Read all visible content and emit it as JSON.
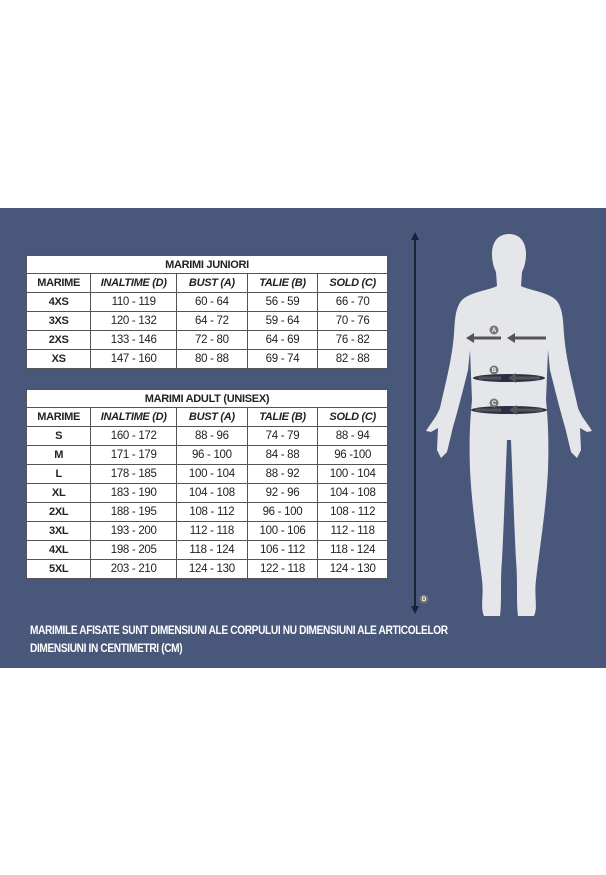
{
  "juniors": {
    "title": "MARIMI JUNIORI",
    "headers": [
      "MARIME",
      "INALTIME (D)",
      "BUST (A)",
      "TALIE (B)",
      "SOLD (C)"
    ],
    "rows": [
      [
        "4XS",
        "110 - 119",
        "60 - 64",
        "56 - 59",
        "66 - 70"
      ],
      [
        "3XS",
        "120 - 132",
        "64 - 72",
        "59 - 64",
        "70 - 76"
      ],
      [
        "2XS",
        "133 - 146",
        "72 - 80",
        "64 - 69",
        "76 - 82"
      ],
      [
        "XS",
        "147 - 160",
        "80 - 88",
        "69 - 74",
        "82 - 88"
      ]
    ]
  },
  "adult": {
    "title": "MARIMI ADULT (UNISEX)",
    "headers": [
      "MARIME",
      "INALTIME (D)",
      "BUST (A)",
      "TALIE (B)",
      "SOLD (C)"
    ],
    "rows": [
      [
        "S",
        "160 - 172",
        "88 - 96",
        "74 - 79",
        "88 - 94"
      ],
      [
        "M",
        "171 - 179",
        "96 - 100",
        "84 - 88",
        "96 -100"
      ],
      [
        "L",
        "178 - 185",
        "100 - 104",
        "88 - 92",
        "100 - 104"
      ],
      [
        "XL",
        "183 - 190",
        "104 - 108",
        "92 - 96",
        "104 - 108"
      ],
      [
        "2XL",
        "188 - 195",
        "108 - 112",
        "96 - 100",
        "108 - 112"
      ],
      [
        "3XL",
        "193 - 200",
        "112 - 118",
        "100 - 106",
        "112 - 118"
      ],
      [
        "4XL",
        "198 - 205",
        "118 - 124",
        "106 - 112",
        "118 - 124"
      ],
      [
        "5XL",
        "203 - 210",
        "124 - 130",
        "122 - 118",
        "124 - 130"
      ]
    ]
  },
  "figure": {
    "labels": [
      "A",
      "B",
      "C",
      "D"
    ]
  },
  "notes": [
    "MARIMILE AFISATE SUNT DIMENSIUNI ALE CORPULUI NU DIMENSIUNI ALE ARTICOLELOR",
    "DIMENSIUNI IN CENTIMETRI (CM)"
  ],
  "colors": {
    "panel": "#48577a",
    "body": "#e4e6ea"
  }
}
